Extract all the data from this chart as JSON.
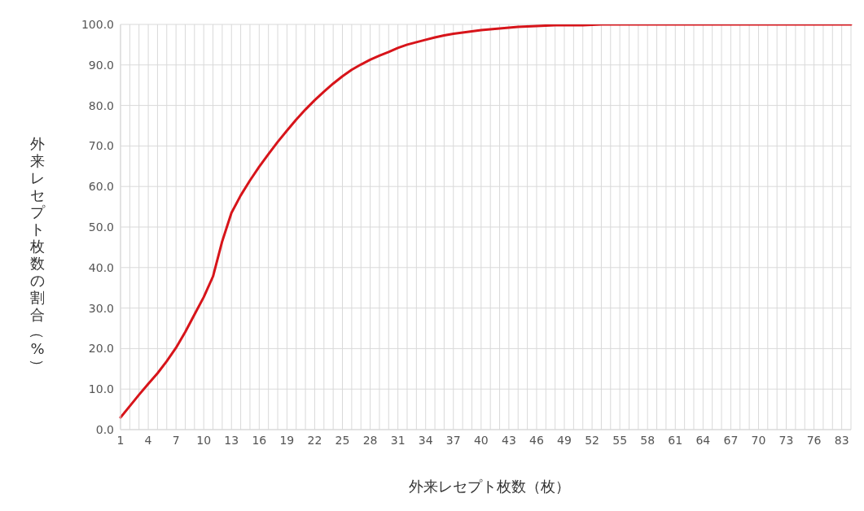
{
  "chart_data": {
    "type": "line",
    "xlabel": "外来レセプト枚数（枚）",
    "ylabel": "外来レセプト枚数の割合（%）",
    "categories": [
      "1",
      null,
      null,
      "4",
      null,
      null,
      "7",
      null,
      null,
      "10",
      null,
      null,
      "13",
      null,
      null,
      "16",
      null,
      null,
      "19",
      null,
      null,
      "22",
      null,
      null,
      "25",
      null,
      null,
      "28",
      null,
      null,
      "31",
      null,
      null,
      "34",
      null,
      null,
      "37",
      null,
      null,
      "40",
      null,
      null,
      "43",
      null,
      null,
      "46",
      null,
      null,
      "49",
      null,
      null,
      "52",
      null,
      null,
      "55",
      null,
      null,
      "58",
      null,
      null,
      "61",
      null,
      null,
      "64",
      null,
      null,
      "67",
      null,
      null,
      "70",
      null,
      null,
      "73",
      null,
      null,
      "76",
      null,
      null,
      "83",
      null
    ],
    "series": [
      {
        "color": "#d7141a",
        "values": [
          3.0,
          5.8,
          8.6,
          11.3,
          13.9,
          16.9,
          20.2,
          24.1,
          28.4,
          32.7,
          37.8,
          46.5,
          53.5,
          57.8,
          61.5,
          64.9,
          68.0,
          71.0,
          73.8,
          76.5,
          79.0,
          81.3,
          83.4,
          85.4,
          87.2,
          88.8,
          90.1,
          91.3,
          92.3,
          93.2,
          94.2,
          95.0,
          95.6,
          96.2,
          96.8,
          97.3,
          97.7,
          98.0,
          98.3,
          98.6,
          98.8,
          99.0,
          99.2,
          99.4,
          99.5,
          99.6,
          99.7,
          99.8,
          99.8,
          99.8,
          99.8,
          99.9,
          100,
          100,
          100,
          100,
          100,
          100,
          100,
          100,
          100,
          100,
          100,
          100,
          100,
          100,
          100,
          100,
          100,
          100,
          100,
          100,
          100,
          100,
          100,
          100,
          100,
          100,
          100,
          100
        ]
      }
    ],
    "ylim": [
      0,
      100
    ],
    "yticks": [
      {
        "value": 0,
        "label": "0.0"
      },
      {
        "value": 10,
        "label": "10.0"
      },
      {
        "value": 20,
        "label": "20.0"
      },
      {
        "value": 30,
        "label": "30.0"
      },
      {
        "value": 40,
        "label": "40.0"
      },
      {
        "value": 50,
        "label": "50.0"
      },
      {
        "value": 60,
        "label": "60.0"
      },
      {
        "value": 70,
        "label": "70.0"
      },
      {
        "value": 80,
        "label": "80.0"
      },
      {
        "value": 90,
        "label": "90.0"
      },
      {
        "value": 100,
        "label": "100.0"
      }
    ],
    "grid": true,
    "legend": false,
    "marker": "none",
    "line_style": "solid"
  }
}
